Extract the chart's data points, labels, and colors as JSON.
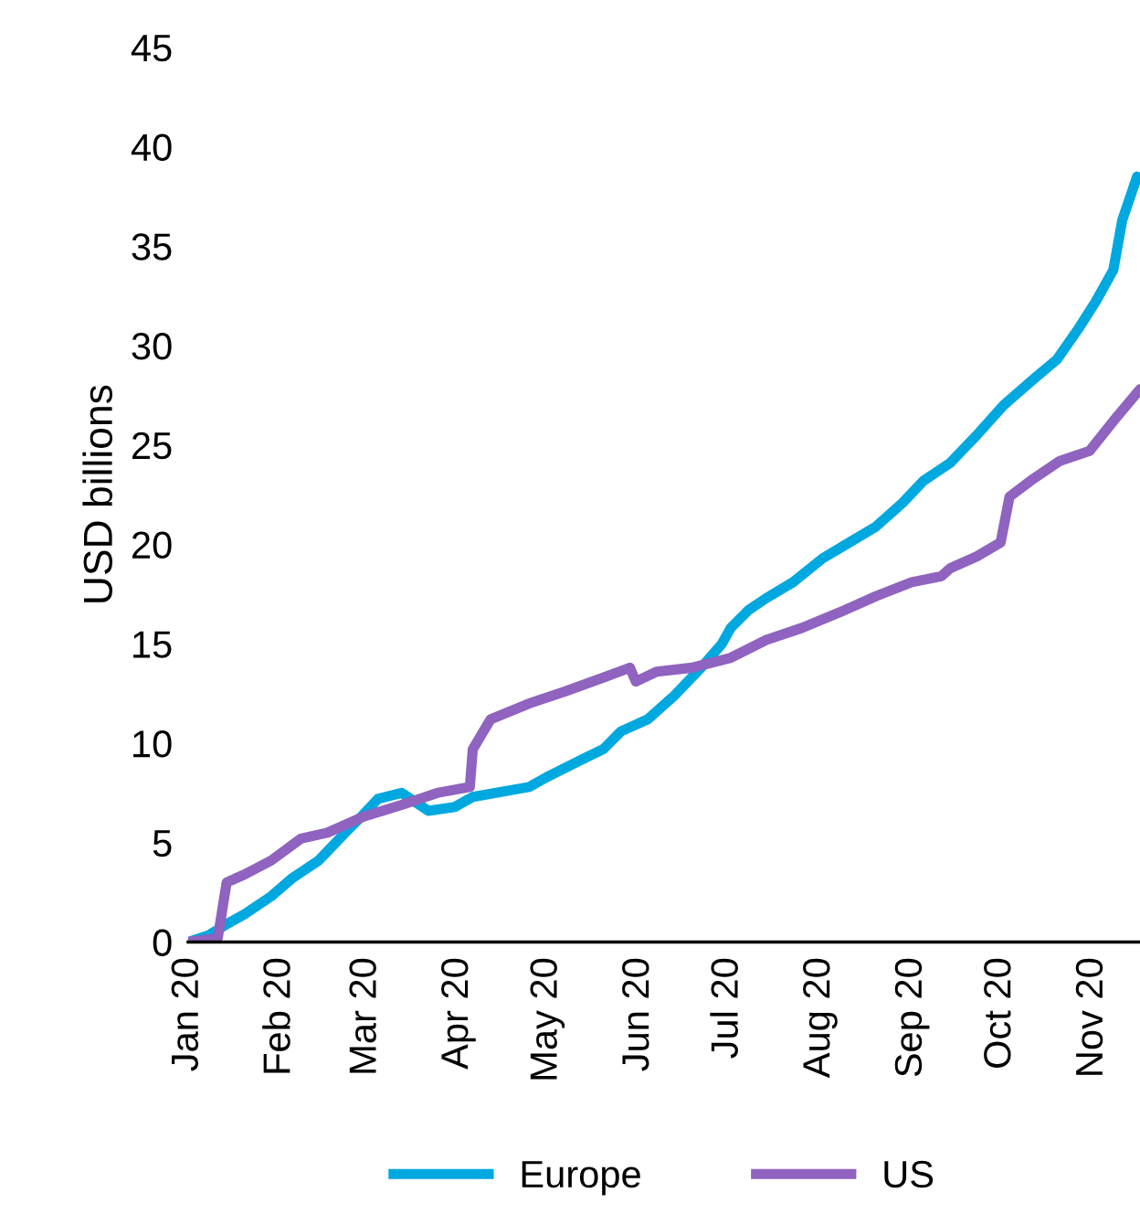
{
  "chart_data": {
    "type": "line",
    "ylabel": "USD billions",
    "xlim": [
      "2020-01-01",
      "2020-11-17"
    ],
    "ylim": [
      0,
      45
    ],
    "yticks": [
      0,
      5,
      10,
      15,
      20,
      25,
      30,
      35,
      40,
      45
    ],
    "xticks": [
      {
        "value": "2020-01-01",
        "label": "Jan 20"
      },
      {
        "value": "2020-02-01",
        "label": "Feb 20"
      },
      {
        "value": "2020-03-01",
        "label": "Mar 20"
      },
      {
        "value": "2020-04-01",
        "label": "Apr 20"
      },
      {
        "value": "2020-05-01",
        "label": "May 20"
      },
      {
        "value": "2020-06-01",
        "label": "Jun 20"
      },
      {
        "value": "2020-07-01",
        "label": "Jul 20"
      },
      {
        "value": "2020-08-01",
        "label": "Aug 20"
      },
      {
        "value": "2020-09-01",
        "label": "Sep 20"
      },
      {
        "value": "2020-10-01",
        "label": "Oct 20"
      },
      {
        "value": "2020-11-01",
        "label": "Nov 20"
      }
    ],
    "grid": false,
    "legend": "bottom",
    "marker": "none",
    "line_style": "solid",
    "series": [
      {
        "name": "Europe",
        "color": "#00a8e0",
        "x": [
          "2020-01-01",
          "2020-01-08",
          "2020-01-14",
          "2020-01-20",
          "2020-01-29",
          "2020-02-05",
          "2020-02-14",
          "2020-02-23",
          "2020-02-29",
          "2020-03-05",
          "2020-03-13",
          "2020-03-16",
          "2020-03-22",
          "2020-03-31",
          "2020-04-06",
          "2020-04-25",
          "2020-05-01",
          "2020-05-13",
          "2020-05-20",
          "2020-05-26",
          "2020-06-04",
          "2020-06-13",
          "2020-06-22",
          "2020-06-29",
          "2020-07-02",
          "2020-07-08",
          "2020-07-14",
          "2020-07-23",
          "2020-08-02",
          "2020-08-11",
          "2020-08-20",
          "2020-08-29",
          "2020-09-05",
          "2020-09-14",
          "2020-09-23",
          "2020-10-02",
          "2020-10-12",
          "2020-10-20",
          "2020-10-27",
          "2020-11-02",
          "2020-11-08",
          "2020-11-11",
          "2020-11-16"
        ],
        "values": [
          0,
          0.35,
          0.9,
          1.4,
          2.3,
          3.2,
          4.1,
          5.5,
          6.4,
          7.2,
          7.5,
          7.2,
          6.6,
          6.8,
          7.3,
          7.8,
          8.3,
          9.2,
          9.7,
          10.6,
          11.2,
          12.4,
          13.8,
          15.0,
          15.8,
          16.7,
          17.3,
          18.1,
          19.3,
          20.1,
          20.9,
          22.1,
          23.2,
          24.1,
          25.5,
          27.0,
          28.3,
          29.3,
          30.8,
          32.2,
          33.8,
          36.3,
          38.5
        ]
      },
      {
        "name": "US",
        "color": "#8f63bf",
        "x": [
          "2020-01-01",
          "2020-01-11",
          "2020-01-14",
          "2020-01-20",
          "2020-01-29",
          "2020-02-08",
          "2020-02-17",
          "2020-02-29",
          "2020-03-13",
          "2020-03-25",
          "2020-04-05",
          "2020-04-06",
          "2020-04-12",
          "2020-04-25",
          "2020-05-07",
          "2020-05-20",
          "2020-05-29",
          "2020-05-31",
          "2020-06-07",
          "2020-06-19",
          "2020-07-02",
          "2020-07-14",
          "2020-07-26",
          "2020-08-08",
          "2020-08-20",
          "2020-09-01",
          "2020-09-11",
          "2020-09-14",
          "2020-09-23",
          "2020-10-01",
          "2020-10-04",
          "2020-10-12",
          "2020-10-21",
          "2020-10-31",
          "2020-11-08",
          "2020-11-17"
        ],
        "values": [
          0,
          0.2,
          3.0,
          3.4,
          4.1,
          5.2,
          5.5,
          6.3,
          6.9,
          7.5,
          7.8,
          9.7,
          11.2,
          12.0,
          12.6,
          13.3,
          13.8,
          13.1,
          13.6,
          13.8,
          14.3,
          15.2,
          15.8,
          16.6,
          17.4,
          18.1,
          18.4,
          18.8,
          19.4,
          20.1,
          22.4,
          23.3,
          24.2,
          24.7,
          26.2,
          27.8
        ]
      }
    ]
  }
}
